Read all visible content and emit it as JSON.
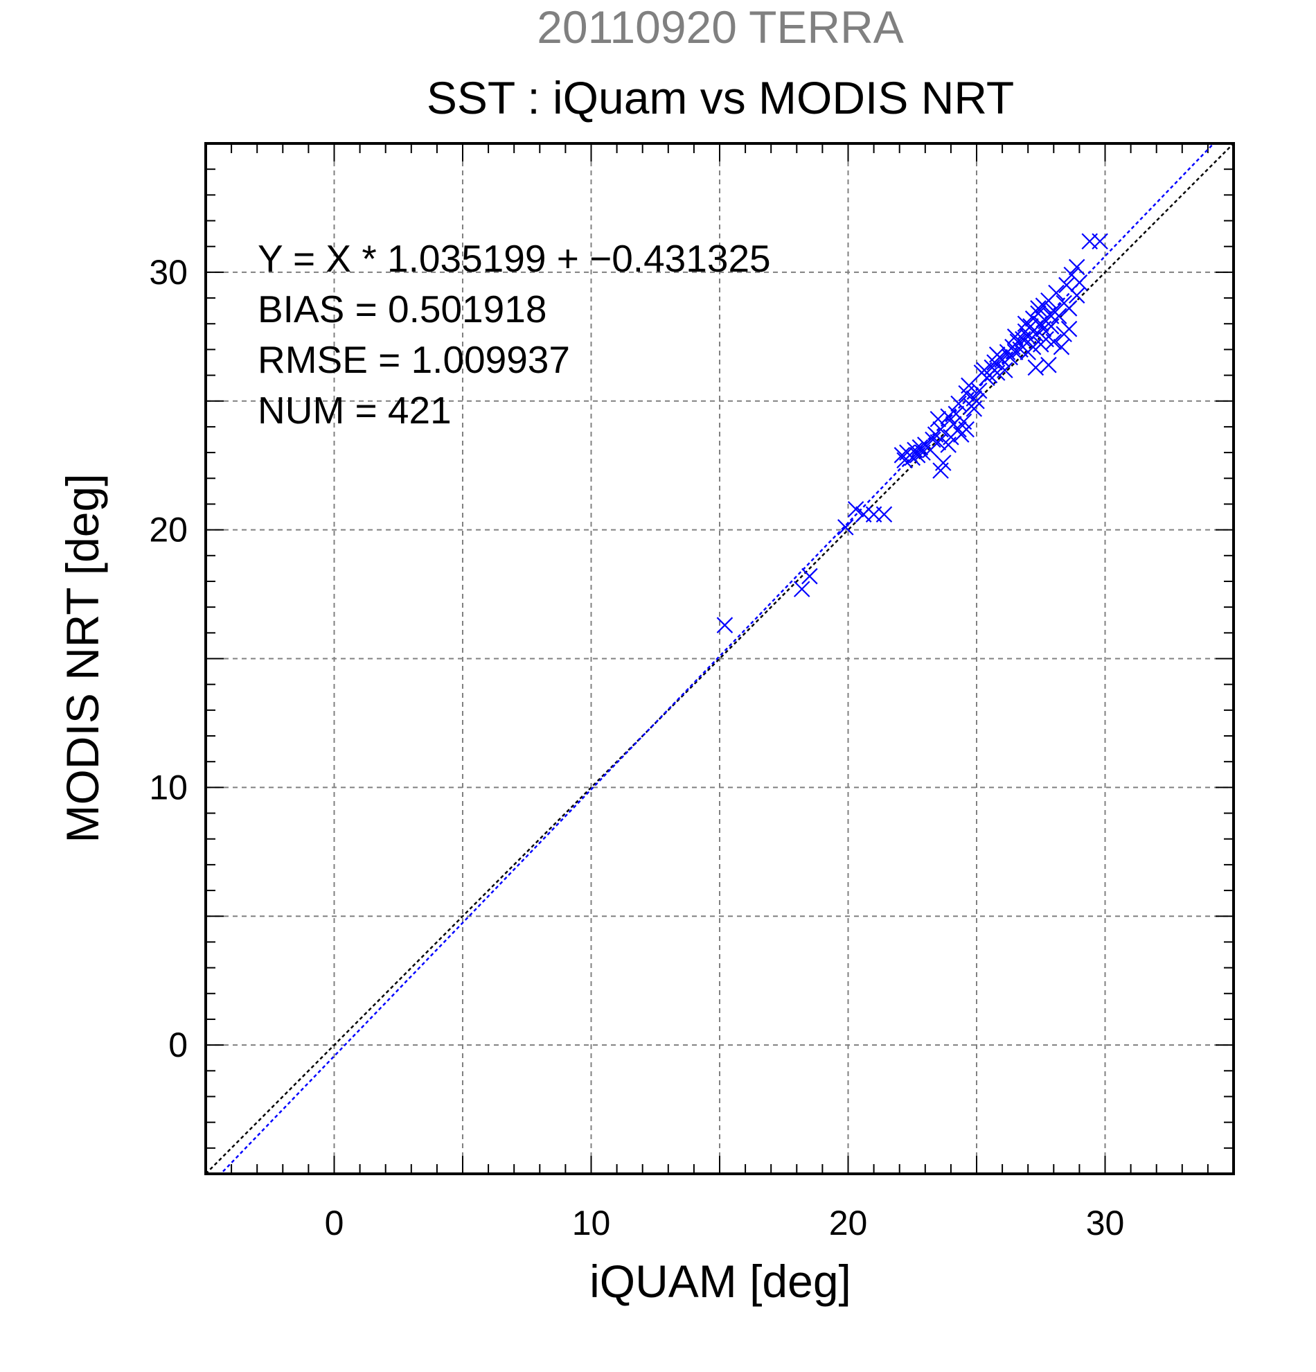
{
  "chart_data": {
    "type": "scatter",
    "title": "SST : iQuam vs MODIS NRT",
    "subtitle": "20110920 TERRA",
    "xlabel": "iQUAM [deg]",
    "ylabel": "MODIS NRT [deg]",
    "xlim": [
      -5,
      35
    ],
    "ylim": [
      -5,
      35
    ],
    "xticks": [
      0,
      10,
      20,
      30
    ],
    "yticks": [
      0,
      10,
      20,
      30
    ],
    "grid": true,
    "annotations": [
      "Y = X * 1.035199 + −0.431325",
      "BIAS = 0.501918",
      "RMSE = 1.009937",
      "NUM = 421"
    ],
    "colors": {
      "points": "#0000ff",
      "fit_line": "#0000ff",
      "identity_line": "#000000",
      "subtitle": "#808080",
      "grid": "#808080"
    },
    "fit": {
      "slope": 1.035199,
      "intercept": -0.431325
    },
    "identity": {
      "slope": 1,
      "intercept": 0
    },
    "series": [
      {
        "marker": "x",
        "points": [
          [
            15.2,
            16.3
          ],
          [
            18.2,
            17.7
          ],
          [
            18.5,
            18.2
          ],
          [
            19.9,
            20.1
          ],
          [
            20.3,
            20.8
          ],
          [
            20.6,
            20.6
          ],
          [
            21.0,
            20.6
          ],
          [
            21.4,
            20.6
          ],
          [
            22.1,
            22.9
          ],
          [
            22.2,
            22.7
          ],
          [
            22.3,
            23.0
          ],
          [
            22.5,
            22.8
          ],
          [
            22.6,
            23.1
          ],
          [
            22.7,
            22.9
          ],
          [
            22.8,
            23.2
          ],
          [
            22.9,
            23.0
          ],
          [
            23.0,
            23.3
          ],
          [
            23.2,
            23.1
          ],
          [
            23.3,
            23.5
          ],
          [
            23.4,
            23.7
          ],
          [
            23.5,
            23.4
          ],
          [
            23.6,
            23.9
          ],
          [
            23.5,
            24.3
          ],
          [
            23.7,
            22.6
          ],
          [
            23.6,
            22.3
          ],
          [
            23.9,
            23.3
          ],
          [
            24.0,
            23.6
          ],
          [
            24.1,
            24.1
          ],
          [
            24.2,
            24.5
          ],
          [
            24.3,
            24.9
          ],
          [
            24.3,
            23.9
          ],
          [
            24.4,
            23.7
          ],
          [
            24.5,
            24.2
          ],
          [
            24.6,
            25.3
          ],
          [
            24.7,
            25.6
          ],
          [
            24.8,
            24.8
          ],
          [
            24.9,
            25.1
          ],
          [
            25.0,
            25.0
          ],
          [
            25.1,
            25.4
          ],
          [
            25.2,
            26.1
          ],
          [
            25.3,
            26.2
          ],
          [
            25.4,
            25.9
          ],
          [
            25.5,
            26.0
          ],
          [
            25.6,
            26.3
          ],
          [
            25.7,
            26.5
          ],
          [
            25.8,
            26.1
          ],
          [
            25.9,
            26.7
          ],
          [
            26.0,
            26.6
          ],
          [
            26.1,
            26.2
          ],
          [
            26.2,
            26.9
          ],
          [
            26.3,
            26.7
          ],
          [
            26.4,
            27.1
          ],
          [
            26.5,
            26.9
          ],
          [
            26.6,
            27.3
          ],
          [
            26.7,
            27.0
          ],
          [
            26.8,
            27.4
          ],
          [
            26.9,
            27.7
          ],
          [
            27.0,
            27.5
          ],
          [
            27.0,
            26.9
          ],
          [
            27.1,
            27.9
          ],
          [
            27.2,
            28.2
          ],
          [
            27.3,
            27.6
          ],
          [
            27.3,
            26.3
          ],
          [
            27.4,
            28.4
          ],
          [
            27.5,
            28.0
          ],
          [
            27.5,
            27.2
          ],
          [
            27.6,
            28.7
          ],
          [
            27.7,
            28.1
          ],
          [
            27.7,
            27.4
          ],
          [
            27.8,
            28.9
          ],
          [
            27.8,
            26.4
          ],
          [
            27.9,
            27.9
          ],
          [
            28.0,
            28.5
          ],
          [
            28.0,
            27.3
          ],
          [
            28.1,
            29.2
          ],
          [
            28.2,
            28.3
          ],
          [
            28.3,
            27.1
          ],
          [
            28.4,
            28.8
          ],
          [
            28.5,
            29.5
          ],
          [
            28.6,
            28.6
          ],
          [
            28.7,
            29.9
          ],
          [
            28.9,
            30.2
          ],
          [
            29.0,
            29.6
          ],
          [
            29.4,
            31.2
          ],
          [
            29.8,
            31.2
          ],
          [
            28.9,
            29.1
          ],
          [
            28.6,
            27.8
          ],
          [
            28.4,
            27.6
          ],
          [
            27.4,
            28.6
          ],
          [
            27.2,
            27.1
          ],
          [
            26.9,
            28.0
          ],
          [
            27.6,
            27.8
          ],
          [
            27.9,
            28.3
          ],
          [
            26.5,
            27.5
          ],
          [
            25.8,
            26.8
          ],
          [
            24.9,
            24.7
          ],
          [
            24.6,
            23.9
          ],
          [
            23.9,
            24.4
          ]
        ]
      }
    ]
  }
}
